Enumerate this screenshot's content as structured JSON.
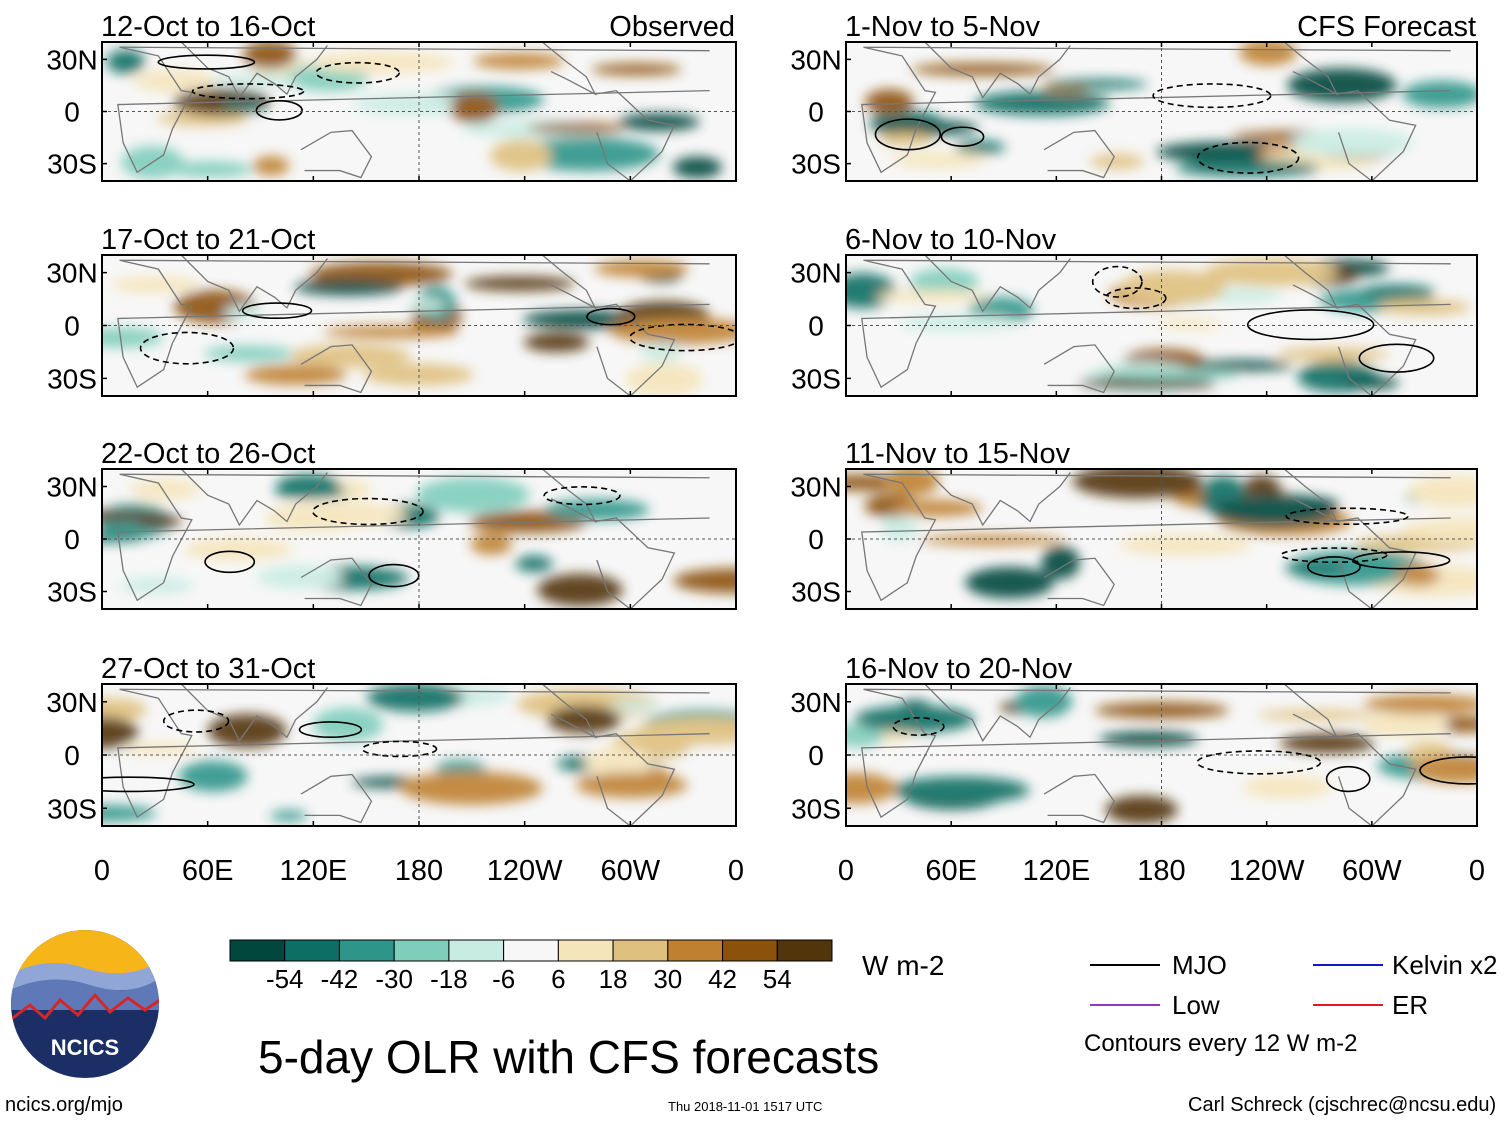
{
  "chart_data": {
    "type": "heatmap",
    "title": "5-day OLR with CFS forecasts",
    "units": "W m-2",
    "observed_label": "Observed",
    "forecast_label": "CFS Forecast",
    "observed_periods": [
      "12-Oct to 16-Oct",
      "17-Oct to 21-Oct",
      "22-Oct to 26-Oct",
      "27-Oct to 31-Oct"
    ],
    "forecast_periods": [
      "1-Nov to 5-Nov",
      "6-Nov to 10-Nov",
      "11-Nov to 15-Nov",
      "16-Nov to 20-Nov"
    ],
    "lat_ticks": [
      "30N",
      "0",
      "30S"
    ],
    "lon_ticks": [
      "0",
      "60E",
      "120E",
      "180",
      "120W",
      "60W",
      "0"
    ],
    "colorbar": {
      "levels": [
        "-54",
        "-42",
        "-30",
        "-18",
        "-6",
        "6",
        "18",
        "30",
        "42",
        "54"
      ],
      "colors": [
        "#01473e",
        "#0c6e64",
        "#2f958a",
        "#7fcdbb",
        "#c9ece2",
        "#f7f7f7",
        "#f5e5bb",
        "#dfc07e",
        "#bf8130",
        "#8c510a",
        "#53350b"
      ]
    },
    "legend": [
      {
        "label": "MJO",
        "color": "#000000"
      },
      {
        "label": "Kelvin x2",
        "color": "#1515cc"
      },
      {
        "label": "Low",
        "color": "#9933cc"
      },
      {
        "label": "ER",
        "color": "#e31a1c"
      }
    ],
    "contour_note": "Contours every 12 W m-2"
  },
  "logo": {
    "text": "NCICS"
  },
  "footer": {
    "url": "ncics.org/mjo",
    "timestamp": "Thu 2018-11-01 1517 UTC",
    "author": "Carl Schreck (cjschrec@ncsu.edu)"
  }
}
